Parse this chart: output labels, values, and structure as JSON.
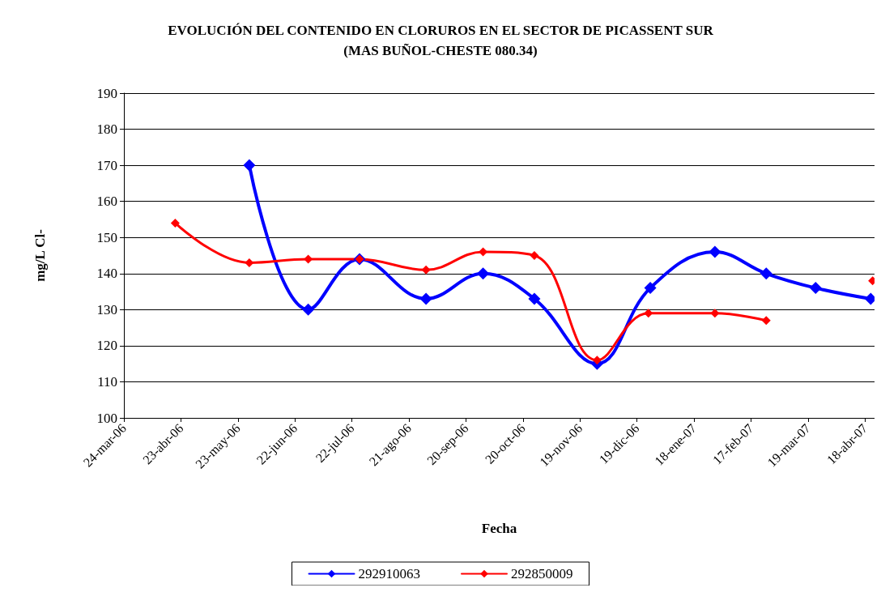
{
  "chart_data": {
    "type": "line",
    "title": "EVOLUCIÓN DEL CONTENIDO EN CLORUROS EN EL SECTOR DE PICASSENT SUR\n(MAS BUÑOL-CHESTE 080.34)",
    "xlabel": "Fecha",
    "ylabel": "mg/L Cl-",
    "ylim": [
      100,
      190
    ],
    "yticks": [
      100,
      110,
      120,
      130,
      140,
      150,
      160,
      170,
      180,
      190
    ],
    "xlim": [
      "2006-03-24",
      "2007-04-23"
    ],
    "xticks": [
      {
        "value": "2006-03-24",
        "label": "24-mar-06"
      },
      {
        "value": "2006-04-23",
        "label": "23-abr-06"
      },
      {
        "value": "2006-05-23",
        "label": "23-may-06"
      },
      {
        "value": "2006-06-22",
        "label": "22-jun-06"
      },
      {
        "value": "2006-07-22",
        "label": "22-jul-06"
      },
      {
        "value": "2006-08-21",
        "label": "21-ago-06"
      },
      {
        "value": "2006-09-20",
        "label": "20-sep-06"
      },
      {
        "value": "2006-10-20",
        "label": "20-oct-06"
      },
      {
        "value": "2006-11-19",
        "label": "19-nov-06"
      },
      {
        "value": "2006-12-19",
        "label": "19-dic-06"
      },
      {
        "value": "2007-01-18",
        "label": "18-ene-07"
      },
      {
        "value": "2007-02-17",
        "label": "17-feb-07"
      },
      {
        "value": "2007-03-19",
        "label": "19-mar-07"
      },
      {
        "value": "2007-04-18",
        "label": "18-abr-07"
      }
    ],
    "grid": "y",
    "legend": "bottom",
    "marker": "diamond",
    "line_style": "solid",
    "series": [
      {
        "name": "292910063",
        "color": "#0000ff",
        "x": [
          "2006-05-29",
          "2006-06-29",
          "2006-07-26",
          "2006-08-30",
          "2006-09-29",
          "2006-10-26",
          "2006-11-28",
          "2006-12-26",
          "2007-01-29",
          "2007-02-25",
          "2007-03-23",
          "2007-04-21"
        ],
        "values": [
          170,
          130,
          144,
          133,
          140,
          133,
          115,
          136,
          146,
          140,
          136,
          133
        ]
      },
      {
        "name": "292850009",
        "color": "#ff0000",
        "x": [
          "2006-04-20",
          "2006-05-29",
          "2006-06-29",
          "2006-07-26",
          "2006-08-30",
          "2006-09-29",
          "2006-10-26",
          "2006-11-28",
          "2006-12-25",
          "2007-01-29",
          "2007-02-25",
          "2007-03-25",
          "2007-04-22"
        ],
        "values": [
          154,
          143,
          144,
          144,
          141,
          146,
          145,
          116,
          129,
          129,
          127,
          null,
          138
        ]
      }
    ]
  }
}
